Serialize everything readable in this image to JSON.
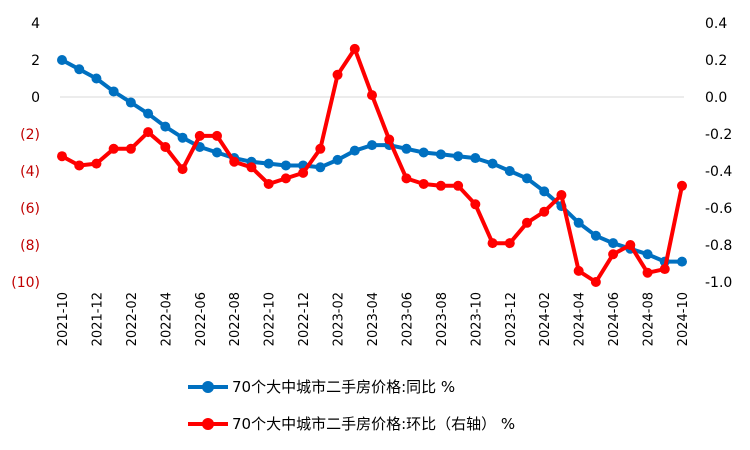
{
  "chart_data": {
    "type": "line",
    "x": [
      "2021-10",
      "2021-11",
      "2021-12",
      "2022-01",
      "2022-02",
      "2022-03",
      "2022-04",
      "2022-05",
      "2022-06",
      "2022-07",
      "2022-08",
      "2022-09",
      "2022-10",
      "2022-11",
      "2022-12",
      "2023-01",
      "2023-02",
      "2023-03",
      "2023-04",
      "2023-05",
      "2023-06",
      "2023-07",
      "2023-08",
      "2023-09",
      "2023-10",
      "2023-11",
      "2023-12",
      "2024-01",
      "2024-02",
      "2024-03",
      "2024-04",
      "2024-05",
      "2024-06",
      "2024-07",
      "2024-08",
      "2024-09",
      "2024-10"
    ],
    "x_tick_labels": [
      "2021-10",
      "2021-12",
      "2022-02",
      "2022-04",
      "2022-06",
      "2022-08",
      "2022-10",
      "2022-12",
      "2023-02",
      "2023-04",
      "2023-06",
      "2023-08",
      "2023-10",
      "2023-12",
      "2024-02",
      "2024-04",
      "2024-06",
      "2024-08",
      "2024-10"
    ],
    "series": [
      {
        "name": "70个大中城市二手房价格:同比 %",
        "axis": "left",
        "color": "#0070C0",
        "values": [
          2.0,
          1.5,
          1.0,
          0.3,
          -0.3,
          -0.9,
          -1.6,
          -2.2,
          -2.7,
          -3.0,
          -3.3,
          -3.5,
          -3.6,
          -3.7,
          -3.7,
          -3.8,
          -3.4,
          -2.9,
          -2.6,
          -2.6,
          -2.8,
          -3.0,
          -3.1,
          -3.2,
          -3.3,
          -3.6,
          -4.0,
          -4.4,
          -5.1,
          -5.9,
          -6.8,
          -7.5,
          -7.9,
          -8.2,
          -8.5,
          -8.9,
          -8.9
        ]
      },
      {
        "name": "70个大中城市二手房价格:环比（右轴） %",
        "axis": "right",
        "color": "#FF0000",
        "values": [
          -0.32,
          -0.37,
          -0.36,
          -0.28,
          -0.28,
          -0.19,
          -0.27,
          -0.39,
          -0.21,
          -0.21,
          -0.35,
          -0.38,
          -0.47,
          -0.44,
          -0.41,
          -0.28,
          0.12,
          0.26,
          0.01,
          -0.23,
          -0.44,
          -0.47,
          -0.48,
          -0.48,
          -0.58,
          -0.79,
          -0.79,
          -0.68,
          -0.62,
          -0.53,
          -0.94,
          -1.0,
          -0.85,
          -0.8,
          -0.95,
          -0.93,
          -0.48
        ]
      }
    ],
    "left_axis": {
      "ylim": [
        -10,
        4
      ],
      "ticks": [
        4,
        2,
        0,
        -2,
        -4,
        -6,
        -8,
        -10
      ],
      "tick_labels": [
        "4",
        "2",
        "0",
        "(2)",
        "(4)",
        "(6)",
        "(8)",
        "(10)"
      ],
      "positive_color": "#000000",
      "negative_color": "#C00000"
    },
    "right_axis": {
      "ylim": [
        -1.0,
        0.4
      ],
      "ticks": [
        0.4,
        0.2,
        0.0,
        -0.2,
        -0.4,
        -0.6,
        -0.8,
        -1.0
      ],
      "tick_labels": [
        "0.4",
        "0.2",
        "0.0",
        "-0.2",
        "-0.4",
        "-0.6",
        "-0.8",
        "-1.0"
      ]
    },
    "grid": false,
    "legend_position": "bottom"
  }
}
